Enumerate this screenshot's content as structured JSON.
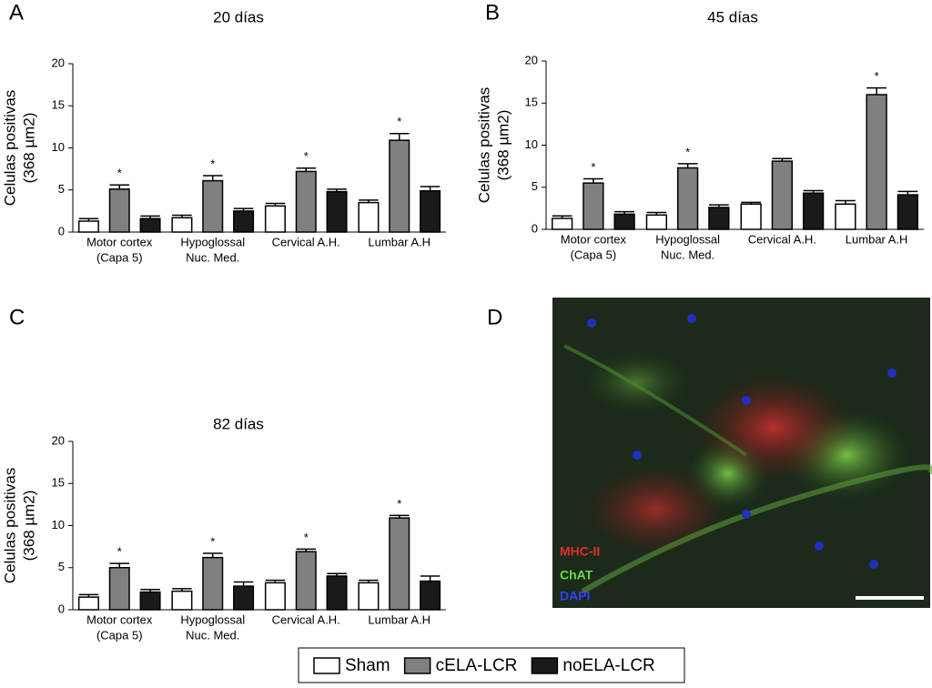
{
  "chart_data": [
    {
      "type": "bar",
      "panel": "A",
      "title": "20 días",
      "ylabel": [
        "Celulas positivas",
        "(368 µm2)"
      ],
      "categories": [
        [
          "Motor cortex",
          "(Capa 5)"
        ],
        [
          "Hypoglossal",
          "Nuc. Med."
        ],
        [
          "Cervical A.H."
        ],
        [
          "Lumbar A.H"
        ]
      ],
      "series": [
        {
          "name": "Sham",
          "color": "#ffffff",
          "values": [
            1.3,
            1.7,
            3.1,
            3.5
          ],
          "errors": [
            0.3,
            0.3,
            0.3,
            0.3
          ]
        },
        {
          "name": "cELA-LCR",
          "color": "#808080",
          "values": [
            5.1,
            6.1,
            7.2,
            10.9
          ],
          "errors": [
            0.5,
            0.6,
            0.4,
            0.8
          ],
          "significance": [
            "*",
            "*",
            "*",
            "*"
          ]
        },
        {
          "name": "noELA-LCR",
          "color": "#1a1a1a",
          "values": [
            1.6,
            2.5,
            4.8,
            4.9
          ],
          "errors": [
            0.3,
            0.3,
            0.3,
            0.5
          ]
        }
      ],
      "ylim": [
        0,
        20
      ],
      "yticks": [
        0,
        5,
        10,
        15,
        20
      ]
    },
    {
      "type": "bar",
      "panel": "B",
      "title": "45 días",
      "ylabel": [
        "Celulas positivas",
        "(368 µm2)"
      ],
      "categories": [
        [
          "Motor cortex",
          "(Capa 5)"
        ],
        [
          "Hypoglossal",
          "Nuc. Med."
        ],
        [
          "Cervical A.H."
        ],
        [
          "Lumbar A.H"
        ]
      ],
      "series": [
        {
          "name": "Sham",
          "color": "#ffffff",
          "values": [
            1.3,
            1.7,
            3.0,
            3.0
          ],
          "errors": [
            0.3,
            0.3,
            0.2,
            0.4
          ]
        },
        {
          "name": "cELA-LCR",
          "color": "#808080",
          "values": [
            5.5,
            7.3,
            8.1,
            16.0
          ],
          "errors": [
            0.5,
            0.5,
            0.3,
            0.8
          ],
          "significance": [
            "*",
            "*",
            null,
            "*"
          ]
        },
        {
          "name": "noELA-LCR",
          "color": "#1a1a1a",
          "values": [
            1.8,
            2.6,
            4.3,
            4.1
          ],
          "errors": [
            0.3,
            0.3,
            0.3,
            0.4
          ]
        }
      ],
      "ylim": [
        0,
        20
      ],
      "yticks": [
        0,
        5,
        10,
        15,
        20
      ]
    },
    {
      "type": "bar",
      "panel": "C",
      "title": "82 días",
      "ylabel": [
        "Celulas positivas",
        "(368 µm2)"
      ],
      "categories": [
        [
          "Motor cortex",
          "(Capa 5)"
        ],
        [
          "Hypoglossal",
          "Nuc. Med."
        ],
        [
          "Cervical A.H."
        ],
        [
          "Lumbar A.H"
        ]
      ],
      "series": [
        {
          "name": "Sham",
          "color": "#ffffff",
          "values": [
            1.5,
            2.2,
            3.2,
            3.2
          ],
          "errors": [
            0.3,
            0.3,
            0.3,
            0.3
          ]
        },
        {
          "name": "cELA-LCR",
          "color": "#808080",
          "values": [
            5.0,
            6.2,
            6.9,
            10.9
          ],
          "errors": [
            0.5,
            0.5,
            0.3,
            0.3
          ],
          "significance": [
            "*",
            "*",
            "*",
            "*"
          ]
        },
        {
          "name": "noELA-LCR",
          "color": "#1a1a1a",
          "values": [
            2.1,
            2.8,
            4.0,
            3.4
          ],
          "errors": [
            0.3,
            0.5,
            0.3,
            0.6
          ]
        }
      ],
      "ylim": [
        0,
        20
      ],
      "yticks": [
        0,
        5,
        10,
        15,
        20
      ]
    }
  ],
  "image_panel": {
    "panel": "D",
    "labels": [
      "MHC-II",
      "ChAT",
      "DAPI"
    ]
  }
}
